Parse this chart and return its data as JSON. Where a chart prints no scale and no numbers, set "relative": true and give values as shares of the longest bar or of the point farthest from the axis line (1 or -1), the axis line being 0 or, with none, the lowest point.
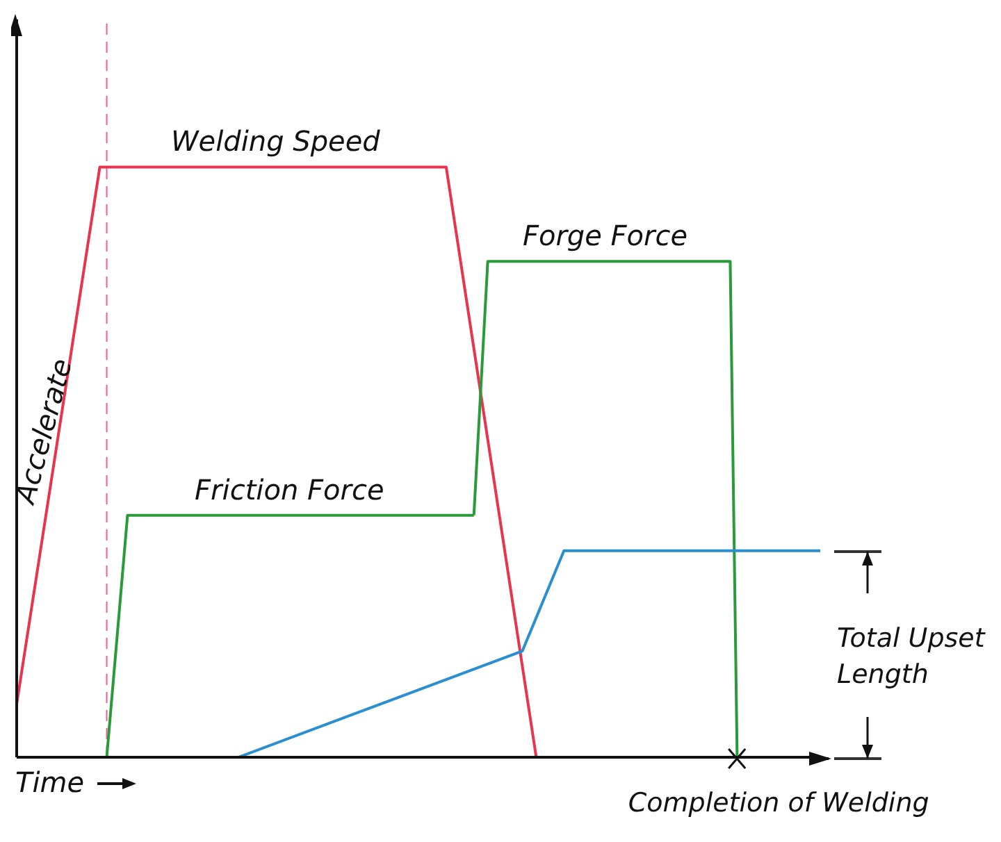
{
  "chart_data": {
    "type": "line",
    "relative": true,
    "xlabel": "Time",
    "marker": "none",
    "line_style": "solid",
    "categories": [
      null,
      null,
      null,
      null,
      null,
      null,
      null,
      null,
      null,
      null,
      null,
      null,
      null,
      null,
      null,
      null,
      null,
      null,
      null,
      null,
      null,
      null,
      null,
      null,
      null,
      null,
      null,
      null,
      null,
      null,
      null,
      null,
      null,
      null,
      null,
      null,
      null,
      null,
      null,
      null,
      null,
      null,
      null,
      null,
      null,
      null,
      null,
      null,
      null,
      null,
      null,
      null,
      null,
      null,
      null,
      null,
      null,
      null,
      null,
      null,
      null,
      null,
      null,
      null,
      null,
      null,
      null,
      null,
      null,
      null,
      null,
      null,
      null,
      null,
      null,
      null,
      null,
      null,
      null,
      null,
      null,
      null,
      null,
      null,
      null,
      null,
      null,
      null,
      null,
      null,
      null,
      null,
      null,
      null,
      null,
      null,
      null,
      null,
      null,
      null,
      null,
      null,
      null,
      null,
      null,
      null,
      null,
      null,
      null,
      null,
      null,
      null,
      null,
      null,
      null,
      null,
      null
    ],
    "series": [
      {
        "name": "Welding Speed",
        "color": "#e8344e",
        "values": [
          0.09,
          null,
          null,
          null,
          null,
          null,
          null,
          null,
          null,
          null,
          null,
          null,
          1,
          null,
          null,
          null,
          null,
          null,
          null,
          null,
          null,
          null,
          null,
          null,
          null,
          null,
          null,
          null,
          null,
          null,
          null,
          null,
          null,
          null,
          null,
          null,
          null,
          null,
          null,
          null,
          null,
          null,
          null,
          null,
          null,
          null,
          null,
          null,
          null,
          null,
          null,
          null,
          null,
          null,
          null,
          null,
          null,
          null,
          null,
          null,
          null,
          null,
          1,
          null,
          null,
          null,
          null,
          null,
          null,
          null,
          null,
          null,
          null,
          null,
          null,
          0,
          null,
          null,
          null,
          null,
          null,
          null,
          null,
          null,
          null,
          null,
          null,
          null,
          null,
          null,
          null,
          null,
          null,
          null,
          null,
          null,
          null,
          null,
          null,
          null,
          null,
          null,
          null,
          null,
          null,
          null,
          null,
          null,
          null,
          null,
          null,
          null,
          null,
          null,
          null,
          null,
          null
        ]
      },
      {
        "name": "Friction Force",
        "color": "#2a9a3a",
        "values": [
          null,
          null,
          null,
          null,
          null,
          null,
          null,
          null,
          null,
          null,
          null,
          null,
          null,
          0,
          null,
          null,
          0.41,
          null,
          null,
          null,
          null,
          null,
          null,
          null,
          null,
          null,
          null,
          null,
          null,
          null,
          null,
          null,
          null,
          null,
          null,
          null,
          null,
          null,
          null,
          null,
          null,
          null,
          null,
          null,
          null,
          null,
          null,
          null,
          null,
          null,
          null,
          null,
          null,
          null,
          null,
          null,
          null,
          null,
          null,
          null,
          null,
          null,
          null,
          null,
          null,
          null,
          0.41,
          null,
          null,
          null,
          null,
          null,
          null,
          null,
          null,
          null,
          null,
          null,
          null,
          null,
          null,
          null,
          null,
          null,
          null,
          null,
          null,
          null,
          null,
          null,
          null,
          null,
          null,
          null,
          null,
          null,
          null,
          null,
          null,
          null,
          null,
          null,
          null,
          null,
          null,
          null,
          null,
          null,
          null,
          null,
          null,
          null,
          null,
          null,
          null,
          null,
          null
        ]
      },
      {
        "name": "Forge Force",
        "color": "#2a9a3a",
        "values": [
          null,
          null,
          null,
          null,
          null,
          null,
          null,
          null,
          null,
          null,
          null,
          null,
          null,
          null,
          null,
          null,
          null,
          null,
          null,
          null,
          null,
          null,
          null,
          null,
          null,
          null,
          null,
          null,
          null,
          null,
          null,
          null,
          null,
          null,
          null,
          null,
          null,
          null,
          null,
          null,
          null,
          null,
          null,
          null,
          null,
          null,
          null,
          null,
          null,
          null,
          null,
          null,
          null,
          null,
          null,
          null,
          null,
          null,
          null,
          null,
          null,
          null,
          null,
          null,
          null,
          null,
          0.41,
          null,
          0.84,
          null,
          null,
          null,
          null,
          null,
          null,
          null,
          null,
          null,
          null,
          null,
          null,
          null,
          null,
          null,
          null,
          null,
          null,
          null,
          null,
          null,
          null,
          null,
          null,
          null,
          null,
          null,
          null,
          null,
          null,
          null,
          null,
          null,
          null,
          0.84,
          0,
          null,
          null,
          null,
          null,
          null,
          null,
          null,
          null,
          null,
          null,
          null,
          null
        ]
      },
      {
        "color": "#2a8fd0",
        "values": [
          null,
          null,
          null,
          null,
          null,
          null,
          null,
          null,
          null,
          null,
          null,
          null,
          null,
          null,
          null,
          null,
          null,
          null,
          null,
          null,
          null,
          null,
          null,
          null,
          null,
          null,
          null,
          null,
          null,
          null,
          null,
          null,
          0,
          null,
          null,
          null,
          null,
          null,
          null,
          null,
          null,
          null,
          null,
          null,
          null,
          null,
          null,
          null,
          null,
          null,
          null,
          null,
          null,
          null,
          null,
          null,
          null,
          null,
          null,
          null,
          null,
          null,
          null,
          null,
          null,
          null,
          null,
          null,
          null,
          null,
          null,
          null,
          null,
          0.18,
          null,
          null,
          null,
          null,
          null,
          0.35,
          null,
          null,
          null,
          null,
          null,
          null,
          null,
          null,
          null,
          null,
          null,
          null,
          null,
          null,
          null,
          null,
          null,
          null,
          null,
          null,
          null,
          null,
          null,
          null,
          null,
          null,
          null,
          null,
          null,
          null,
          null,
          null,
          null,
          null,
          null,
          null,
          0.35
        ]
      }
    ],
    "annotations": [
      "Accelerate",
      "Total Upset Length",
      "Completion of Welding"
    ]
  }
}
